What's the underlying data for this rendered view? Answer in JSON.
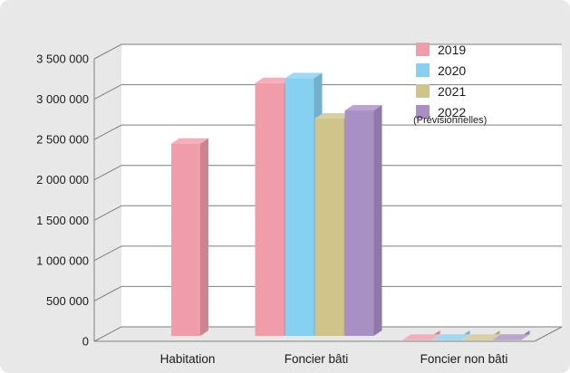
{
  "chart_data": {
    "type": "bar",
    "categories": [
      "Habitation",
      "Foncier bâti",
      "Foncier non bâti"
    ],
    "series": [
      {
        "name": "2019",
        "values": [
          2450000,
          3200000,
          20000
        ],
        "color": "#f09ca9"
      },
      {
        "name": "2020",
        "values": [
          null,
          3260000,
          20000
        ],
        "color": "#86d0f2"
      },
      {
        "name": "2021",
        "values": [
          null,
          2760000,
          20000
        ],
        "color": "#cfc48a"
      },
      {
        "name": "2022",
        "values": [
          null,
          2860000,
          20000
        ],
        "color": "#a88fc4"
      }
    ],
    "legend_note": "(Prévisionnelles)",
    "yticks": [
      0,
      500000,
      1000000,
      1500000,
      2000000,
      2500000,
      3000000,
      3500000
    ],
    "ytick_labels": [
      "0",
      "500 000",
      "1 000 000",
      "1 500 000",
      "2 000 000",
      "2 500 000",
      "3 000 000",
      "3 500 000"
    ],
    "ylim": [
      0,
      3500000
    ],
    "grid": true,
    "legend_position": "top-right",
    "style": "3d-bar"
  }
}
